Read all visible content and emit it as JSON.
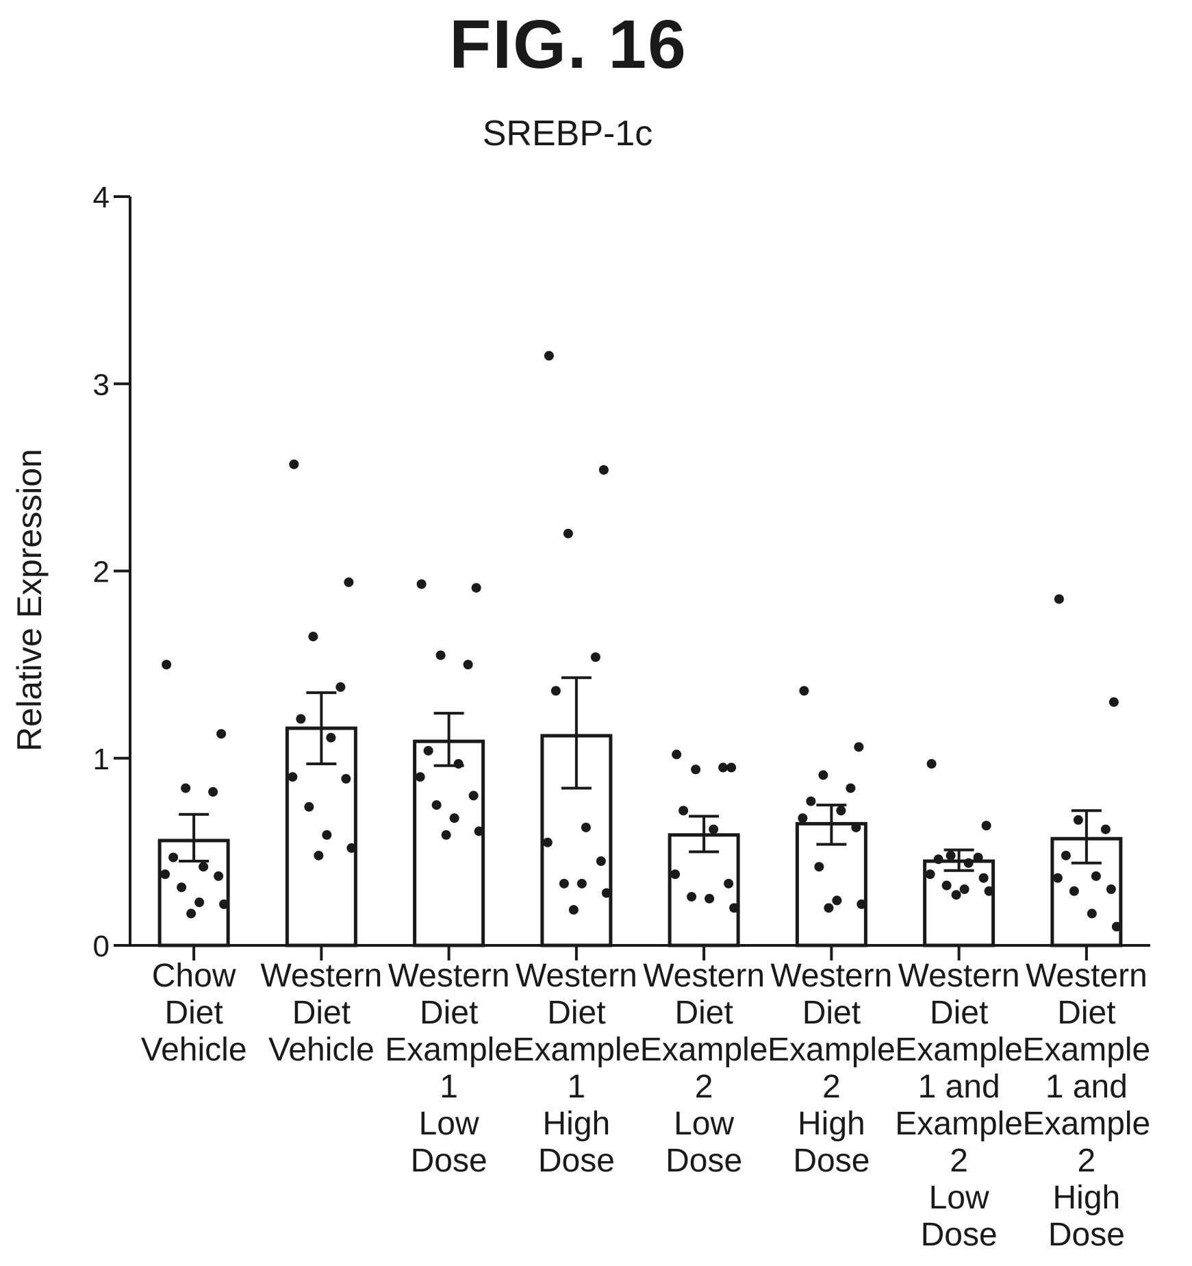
{
  "figure_label": "FIG. 16",
  "chart_data": {
    "type": "bar",
    "title": "SREBP-1c",
    "xlabel": "",
    "ylabel": "Relative Expression",
    "ylim": [
      0,
      4
    ],
    "yticks": [
      0,
      1,
      2,
      3,
      4
    ],
    "grid": false,
    "legend": "none",
    "colors": {
      "bar_fill": "#ffffff",
      "stroke": "#1a1a1a",
      "point": "#1a1a1a"
    },
    "categories": [
      [
        "Chow",
        "Diet",
        "Vehicle"
      ],
      [
        "Western",
        "Diet",
        "Vehicle"
      ],
      [
        "Western",
        "Diet",
        "Example",
        "1",
        "Low",
        "Dose"
      ],
      [
        "Western",
        "Diet",
        "Example",
        "1",
        "High",
        "Dose"
      ],
      [
        "Western",
        "Diet",
        "Example",
        "2",
        "Low",
        "Dose"
      ],
      [
        "Western",
        "Diet",
        "Example",
        "2",
        "High",
        "Dose"
      ],
      [
        "Western",
        "Diet",
        "Example",
        "1 and",
        "Example",
        "2",
        "Low",
        "Dose"
      ],
      [
        "Western",
        "Diet",
        "Example",
        "1 and",
        "Example",
        "2",
        "High",
        "Dose"
      ]
    ],
    "values": [
      0.56,
      1.16,
      1.09,
      1.12,
      0.59,
      0.65,
      0.45,
      0.57
    ],
    "error_high": [
      0.7,
      1.35,
      1.24,
      1.43,
      0.69,
      0.75,
      0.51,
      0.72
    ],
    "error_low": [
      0.45,
      0.97,
      0.96,
      0.84,
      0.5,
      0.54,
      0.4,
      0.44
    ],
    "points": [
      [
        1.5,
        1.13,
        0.84,
        0.82,
        0.47,
        0.42,
        0.38,
        0.37,
        0.31,
        0.23,
        0.22,
        0.17
      ],
      [
        2.57,
        1.94,
        1.65,
        1.38,
        1.21,
        1.11,
        0.9,
        0.89,
        0.74,
        0.59,
        0.52,
        0.48
      ],
      [
        1.93,
        1.91,
        1.55,
        1.5,
        1.04,
        0.97,
        0.9,
        0.8,
        0.75,
        0.68,
        0.61,
        0.59
      ],
      [
        3.15,
        2.54,
        2.2,
        1.54,
        1.36,
        0.63,
        0.55,
        0.45,
        0.33,
        0.33,
        0.28,
        0.19
      ],
      [
        1.02,
        0.95,
        0.94,
        0.95,
        0.72,
        0.62,
        0.38,
        0.33,
        0.26,
        0.25,
        0.2
      ],
      [
        1.36,
        1.06,
        0.91,
        0.84,
        0.77,
        0.72,
        0.68,
        0.63,
        0.42,
        0.24,
        0.22,
        0.2
      ],
      [
        0.97,
        0.64,
        0.48,
        0.47,
        0.46,
        0.44,
        0.38,
        0.36,
        0.32,
        0.3,
        0.29,
        0.27
      ],
      [
        1.85,
        1.3,
        0.67,
        0.62,
        0.48,
        0.37,
        0.36,
        0.3,
        0.29,
        0.17,
        0.1
      ]
    ]
  }
}
